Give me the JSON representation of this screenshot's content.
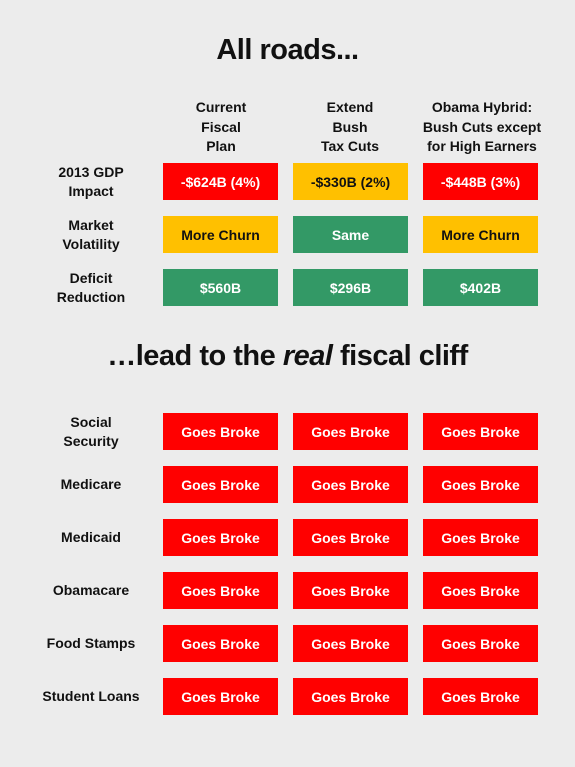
{
  "title_top": "All roads...",
  "title_bottom": {
    "prefix": "…lead to the ",
    "italic": "real",
    "suffix": " fiscal cliff"
  },
  "colors": {
    "red": "#ff0000",
    "yellow": "#ffc000",
    "green": "#339966"
  },
  "columns": [
    {
      "lines": [
        "Current",
        "Fiscal",
        "Plan"
      ]
    },
    {
      "lines": [
        "Extend",
        "Bush",
        "Tax Cuts"
      ]
    },
    {
      "lines": [
        "Obama Hybrid:",
        "Bush Cuts except",
        "for High Earners"
      ]
    }
  ],
  "top_rows": [
    {
      "label_lines": [
        "2013 GDP",
        "Impact"
      ],
      "cells": [
        {
          "text": "-$624B (4%)",
          "color": "red"
        },
        {
          "text": "-$330B (2%)",
          "color": "yellow"
        },
        {
          "text": "-$448B (3%)",
          "color": "red"
        }
      ]
    },
    {
      "label_lines": [
        "Market",
        "Volatility"
      ],
      "cells": [
        {
          "text": "More Churn",
          "color": "yellow"
        },
        {
          "text": "Same",
          "color": "green"
        },
        {
          "text": "More Churn",
          "color": "yellow"
        }
      ]
    },
    {
      "label_lines": [
        "Deficit",
        "Reduction"
      ],
      "cells": [
        {
          "text": "$560B",
          "color": "green"
        },
        {
          "text": "$296B",
          "color": "green"
        },
        {
          "text": "$402B",
          "color": "green"
        }
      ]
    }
  ],
  "bottom_rows": [
    {
      "label_lines": [
        "Social",
        "Security"
      ],
      "cells": [
        {
          "text": "Goes Broke",
          "color": "red"
        },
        {
          "text": "Goes Broke",
          "color": "red"
        },
        {
          "text": "Goes Broke",
          "color": "red"
        }
      ]
    },
    {
      "label_lines": [
        "Medicare"
      ],
      "cells": [
        {
          "text": "Goes Broke",
          "color": "red"
        },
        {
          "text": "Goes Broke",
          "color": "red"
        },
        {
          "text": "Goes Broke",
          "color": "red"
        }
      ]
    },
    {
      "label_lines": [
        "Medicaid"
      ],
      "cells": [
        {
          "text": "Goes Broke",
          "color": "red"
        },
        {
          "text": "Goes Broke",
          "color": "red"
        },
        {
          "text": "Goes Broke",
          "color": "red"
        }
      ]
    },
    {
      "label_lines": [
        "Obamacare"
      ],
      "cells": [
        {
          "text": "Goes Broke",
          "color": "red"
        },
        {
          "text": "Goes Broke",
          "color": "red"
        },
        {
          "text": "Goes Broke",
          "color": "red"
        }
      ]
    },
    {
      "label_lines": [
        "Food Stamps"
      ],
      "cells": [
        {
          "text": "Goes Broke",
          "color": "red"
        },
        {
          "text": "Goes Broke",
          "color": "red"
        },
        {
          "text": "Goes Broke",
          "color": "red"
        }
      ]
    },
    {
      "label_lines": [
        "Student Loans"
      ],
      "cells": [
        {
          "text": "Goes Broke",
          "color": "red"
        },
        {
          "text": "Goes Broke",
          "color": "red"
        },
        {
          "text": "Goes Broke",
          "color": "red"
        }
      ]
    }
  ]
}
